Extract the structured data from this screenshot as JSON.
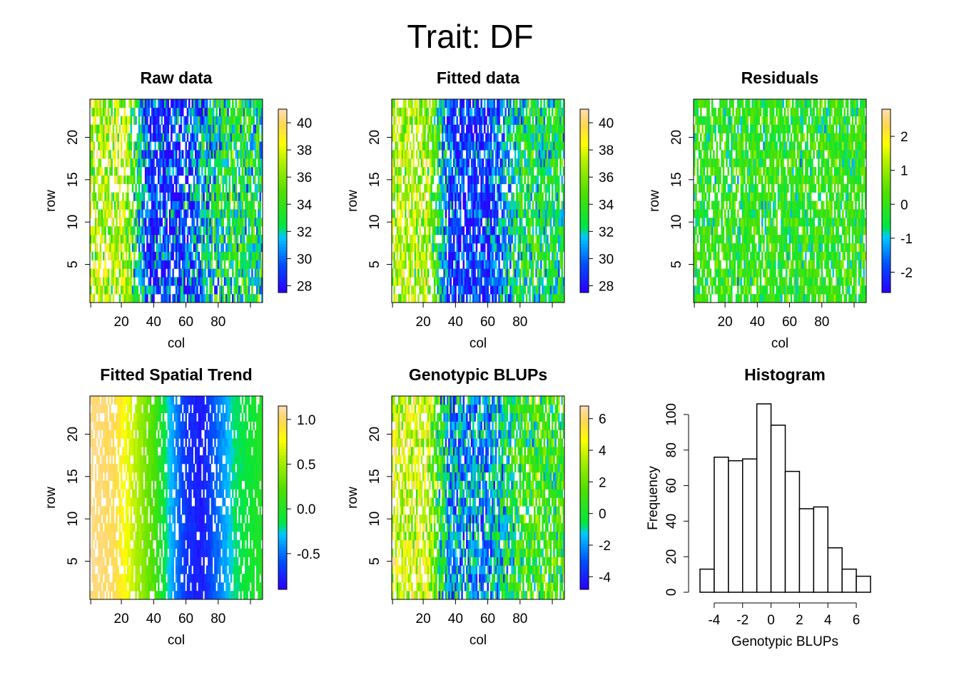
{
  "figure": {
    "title": "Trait: DF"
  },
  "chart_data": [
    {
      "id": "raw",
      "type": "heatmap",
      "title": "Raw data",
      "xlabel": "col",
      "ylabel": "row",
      "x_ticks": [
        "20",
        "40",
        "60",
        "80"
      ],
      "y_ticks": [
        "5",
        "10",
        "15",
        "20"
      ],
      "colorbar": {
        "ticks": [
          "28",
          "30",
          "32",
          "34",
          "36",
          "38",
          "40"
        ],
        "range": [
          27.5,
          41
        ]
      },
      "grid": {
        "rows": 24,
        "cols": 107,
        "missing_fraction": 0.15
      },
      "value_profile": {
        "left_cols": 37,
        "center_cols": 29,
        "right_cols": 33,
        "noise": 3
      }
    },
    {
      "id": "fitted",
      "type": "heatmap",
      "title": "Fitted data",
      "xlabel": "col",
      "ylabel": "row",
      "x_ticks": [
        "20",
        "40",
        "60",
        "80"
      ],
      "y_ticks": [
        "5",
        "10",
        "15",
        "20"
      ],
      "colorbar": {
        "ticks": [
          "28",
          "30",
          "32",
          "34",
          "36",
          "38",
          "40"
        ],
        "range": [
          27.5,
          41
        ]
      },
      "grid": {
        "rows": 24,
        "cols": 107,
        "missing_fraction": 0.15
      },
      "value_profile": {
        "left_cols": 37,
        "center_cols": 29,
        "right_cols": 33,
        "noise": 2.5
      }
    },
    {
      "id": "residuals",
      "type": "heatmap",
      "title": "Residuals",
      "xlabel": "col",
      "ylabel": "row",
      "x_ticks": [
        "20",
        "40",
        "60",
        "80"
      ],
      "y_ticks": [
        "5",
        "10",
        "15",
        "20"
      ],
      "colorbar": {
        "ticks": [
          "-2",
          "-1",
          "0",
          "1",
          "2"
        ],
        "range": [
          -2.6,
          2.8
        ]
      },
      "grid": {
        "rows": 24,
        "cols": 107,
        "missing_fraction": 0.15
      },
      "value_profile": {
        "left_cols": 0,
        "center_cols": 0,
        "right_cols": 0,
        "noise": 0.8
      }
    },
    {
      "id": "trend",
      "type": "heatmap",
      "title": "Fitted Spatial Trend",
      "xlabel": "col",
      "ylabel": "row",
      "x_ticks": [
        "20",
        "40",
        "60",
        "80"
      ],
      "y_ticks": [
        "5",
        "10",
        "15",
        "20"
      ],
      "colorbar": {
        "ticks": [
          "-0.5",
          "0.0",
          "0.5",
          "1.0"
        ],
        "range": [
          -0.9,
          1.15
        ]
      },
      "grid": {
        "rows": 24,
        "cols": 107,
        "missing_fraction": 0.15
      },
      "value_profile": {
        "trend_points": [
          [
            1,
            1.1
          ],
          [
            15,
            1.0
          ],
          [
            25,
            0.7
          ],
          [
            40,
            0.2
          ],
          [
            50,
            -0.3
          ],
          [
            60,
            -0.7
          ],
          [
            70,
            -0.8
          ],
          [
            80,
            -0.5
          ],
          [
            90,
            -0.2
          ],
          [
            107,
            0.0
          ]
        ],
        "noise": 0.05
      }
    },
    {
      "id": "blups",
      "type": "heatmap",
      "title": "Genotypic BLUPs",
      "xlabel": "col",
      "ylabel": "row",
      "x_ticks": [
        "20",
        "40",
        "60",
        "80"
      ],
      "y_ticks": [
        "5",
        "10",
        "15",
        "20"
      ],
      "colorbar": {
        "ticks": [
          "-4",
          "-2",
          "0",
          "2",
          "4",
          "6"
        ],
        "range": [
          -4.8,
          6.8
        ]
      },
      "grid": {
        "rows": 24,
        "cols": 107,
        "missing_fraction": 0.15
      },
      "value_profile": {
        "left_cols": 4,
        "center_cols": -2,
        "right_cols": 1,
        "noise": 2.2
      }
    },
    {
      "id": "histogram",
      "type": "bar",
      "title": "Histogram",
      "xlabel": "Genotypic BLUPs",
      "ylabel": "Frequency",
      "bin_edges": [
        -5,
        -4,
        -3,
        -2,
        -1,
        0,
        1,
        2,
        3,
        4,
        5,
        6,
        7
      ],
      "values": [
        13,
        76,
        74,
        75,
        106,
        94,
        68,
        47,
        48,
        25,
        13,
        9
      ],
      "x_ticks": [
        "-4",
        "-2",
        "0",
        "2",
        "4",
        "6"
      ],
      "y_ticks": [
        "0",
        "20",
        "40",
        "60",
        "80",
        "100"
      ],
      "ylim": [
        0,
        106
      ]
    }
  ]
}
